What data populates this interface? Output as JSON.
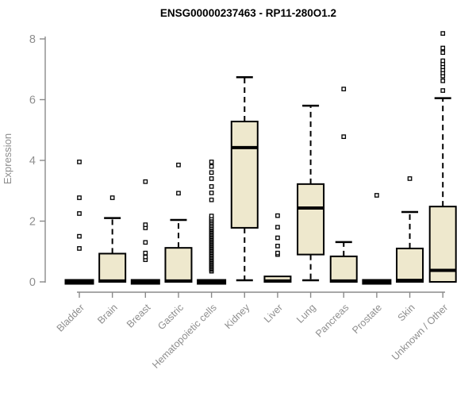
{
  "chart_data": {
    "type": "boxplot",
    "title": "ENSG00000237463 - RP11-280O1.2",
    "ylabel": "Expression",
    "xlabel": "",
    "ylim": [
      0,
      8.3
    ],
    "y_ticks": [
      0,
      2,
      4,
      6,
      8
    ],
    "grid": "off",
    "legend": "none",
    "categories": [
      "Bladder",
      "Brain",
      "Breast",
      "Gastric",
      "Hematopoietic cells",
      "Kidney",
      "Liver",
      "Lung",
      "Pancreas",
      "Prostate",
      "Skin",
      "Unknown / Other"
    ],
    "series": [
      {
        "name": "Bladder",
        "low": 0,
        "q1": 0,
        "median": 0,
        "q3": 0,
        "high": 0,
        "outliers": [
          1.1,
          1.5,
          2.25,
          2.77,
          3.95
        ]
      },
      {
        "name": "Brain",
        "low": 0,
        "q1": 0,
        "median": 0.03,
        "q3": 0.93,
        "high": 2.1,
        "outliers": [
          2.77
        ]
      },
      {
        "name": "Breast",
        "low": 0,
        "q1": 0,
        "median": 0,
        "q3": 0,
        "high": 0,
        "outliers": [
          0.73,
          0.82,
          0.95,
          1.3,
          1.78,
          1.88,
          3.3
        ]
      },
      {
        "name": "Gastric",
        "low": 0,
        "q1": 0,
        "median": 0.03,
        "q3": 1.12,
        "high": 2.04,
        "outliers": [
          2.92,
          3.85
        ]
      },
      {
        "name": "Hematopoietic cells",
        "low": 0,
        "q1": 0,
        "median": 0,
        "q3": 0,
        "high": 0,
        "outliers": [
          0.35,
          0.4,
          0.44,
          0.48,
          0.52,
          0.56,
          0.6,
          0.64,
          0.68,
          0.72,
          0.76,
          0.8,
          0.84,
          0.88,
          0.92,
          0.96,
          1.0,
          1.04,
          1.08,
          1.12,
          1.16,
          1.2,
          1.24,
          1.28,
          1.32,
          1.36,
          1.4,
          1.44,
          1.48,
          1.52,
          1.56,
          1.6,
          1.64,
          1.68,
          1.72,
          1.76,
          1.8,
          1.85,
          1.9,
          1.95,
          2.0,
          2.05,
          2.1,
          2.17,
          2.7,
          2.93,
          3.14,
          3.4,
          3.6,
          3.8,
          3.95
        ]
      },
      {
        "name": "Kidney",
        "low": 0,
        "q1": 1.78,
        "median": 4.42,
        "q3": 5.28,
        "high": 6.74,
        "outliers": []
      },
      {
        "name": "Liver",
        "low": 0,
        "q1": 0,
        "median": 0.03,
        "q3": 0.18,
        "high": 0.18,
        "outliers": [
          0.9,
          0.95,
          1.18,
          1.45,
          1.8,
          2.18
        ]
      },
      {
        "name": "Lung",
        "low": 0,
        "q1": 0.9,
        "median": 2.43,
        "q3": 3.22,
        "high": 5.8,
        "outliers": []
      },
      {
        "name": "Pancreas",
        "low": 0,
        "q1": 0,
        "median": 0.03,
        "q3": 0.84,
        "high": 1.31,
        "outliers": [
          4.78,
          6.35
        ]
      },
      {
        "name": "Prostate",
        "low": 0,
        "q1": 0,
        "median": 0,
        "q3": 0,
        "high": 0,
        "outliers": [
          2.85
        ]
      },
      {
        "name": "Skin",
        "low": 0,
        "q1": 0,
        "median": 0.05,
        "q3": 1.1,
        "high": 2.3,
        "outliers": [
          3.4
        ]
      },
      {
        "name": "Unknown / Other",
        "low": 0,
        "q1": 0,
        "median": 0.38,
        "q3": 2.48,
        "high": 6.05,
        "outliers": [
          6.3,
          6.62,
          6.78,
          6.88,
          6.98,
          7.08,
          7.18,
          7.28,
          7.55,
          7.7,
          8.18
        ]
      }
    ],
    "colors": {
      "box_fill": "#EEE8CD",
      "box_stroke": "#000000",
      "median": "#000000",
      "whisker": "#000000",
      "outlier_fill": "#FFFFFF",
      "axis": "#8A8A8A",
      "tick_label": "#8E8E8E",
      "title": "#000000",
      "background": "#FFFFFF"
    }
  }
}
